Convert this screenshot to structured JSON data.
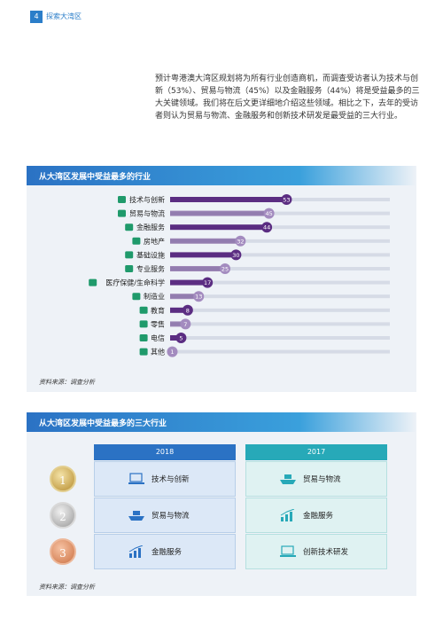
{
  "header": {
    "page_number": "4",
    "section": "探索大湾区"
  },
  "intro": "预计粤港澳大湾区规划将为所有行业创造商机，而调查受访者认为技术与创新（53%）、贸易与物流（45%）以及金融服务（44%）将是受益最多的三大关键领域。我们将在后文更详细地介绍这些领域。相比之下，去年的受访者则认为贸易与物流、金融服务和创新技术研发是最受益的三大行业。",
  "colors": {
    "bar": "#5b2d82",
    "track": "#d6dbe6",
    "header_blue": "#2b72c4",
    "header_teal": "#27a9b8"
  },
  "chart_data": {
    "type": "bar",
    "title": "从大湾区发展中受益最多的行业",
    "categories": [
      "技术与创新",
      "贸易与物流",
      "金融服务",
      "房地产",
      "基础设施",
      "专业服务",
      "医疗保健/生命科学",
      "制造业",
      "教育",
      "零售",
      "电信",
      "其他"
    ],
    "icons": [
      "laptop-icon",
      "ship-icon",
      "bank-chart-icon",
      "building-icon",
      "crane-icon",
      "handshake-icon",
      "health-heart-icon",
      "factory-icon",
      "graduation-cap-icon",
      "shop-icon",
      "signal-tower-icon",
      "chat-icon"
    ],
    "values": [
      53,
      45,
      44,
      32,
      30,
      25,
      17,
      13,
      8,
      7,
      5,
      1
    ],
    "ylim": [
      0,
      100
    ],
    "source": "资料来源：调查分析"
  },
  "top3": {
    "title": "从大湾区发展中受益最多的三大行业",
    "ranks": [
      "1",
      "2",
      "3"
    ],
    "col_2018": {
      "label": "2018",
      "items": [
        "技术与创新",
        "贸易与物流",
        "金融服务"
      ],
      "icons": [
        "laptop-icon",
        "ship-icon",
        "bank-chart-icon"
      ]
    },
    "col_2017": {
      "label": "2017",
      "items": [
        "贸易与物流",
        "金融服务",
        "创新技术研发"
      ],
      "icons": [
        "ship-icon",
        "bank-chart-icon",
        "laptop-icon"
      ]
    },
    "source": "资料来源：调查分析"
  }
}
